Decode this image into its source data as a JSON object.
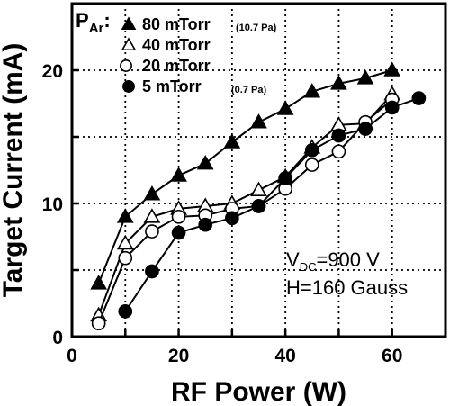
{
  "chart_data": {
    "type": "line",
    "xlabel": "RF Power (W)",
    "ylabel": "Target Current (mA)",
    "xlim": [
      0,
      70
    ],
    "ylim": [
      0,
      25
    ],
    "xticks": [
      0,
      20,
      40,
      60
    ],
    "yticks": [
      0,
      10,
      20
    ],
    "grid": true,
    "legend_title": "P",
    "legend_title_sub": "Ar",
    "legend_title_colon": ":",
    "legend_placement": "top-left",
    "series": [
      {
        "name": "80 mTorr",
        "note": "(10.7 Pa)",
        "marker": "triangle-filled",
        "x": [
          5,
          10,
          15,
          20,
          25,
          30,
          35,
          40,
          45,
          50,
          55,
          60
        ],
        "y": [
          4.0,
          9.0,
          10.7,
          12.1,
          13.0,
          14.6,
          16.1,
          17.1,
          18.4,
          19.0,
          19.4,
          20.0
        ]
      },
      {
        "name": "40 mTorr",
        "note": "",
        "marker": "triangle-open",
        "x": [
          5,
          10,
          15,
          20,
          25,
          30,
          35,
          40,
          45,
          50,
          55,
          60
        ],
        "y": [
          1.6,
          7.0,
          9.0,
          9.6,
          9.8,
          10.0,
          11.0,
          12.0,
          14.2,
          15.9,
          16.0,
          18.2
        ]
      },
      {
        "name": "20 mTorr",
        "note": "",
        "marker": "circle-open",
        "x": [
          5,
          10,
          15,
          20,
          25,
          30,
          35,
          40,
          45,
          50,
          55,
          60
        ],
        "y": [
          1.0,
          5.9,
          7.9,
          9.0,
          9.1,
          9.6,
          9.8,
          11.1,
          12.9,
          13.9,
          16.1,
          17.8
        ]
      },
      {
        "name": "5 mTorr",
        "note": "(0.7 Pa)",
        "marker": "circle-filled",
        "x": [
          10,
          15,
          20,
          25,
          30,
          35,
          40,
          45,
          50,
          55,
          60,
          65
        ],
        "y": [
          1.9,
          4.9,
          7.8,
          8.4,
          8.9,
          9.8,
          11.9,
          14.0,
          15.1,
          15.6,
          17.2,
          17.9
        ]
      }
    ],
    "annotations": {
      "vdc_main": "V",
      "vdc_sub": "DC",
      "vdc_value": "=900 V",
      "field": "H=160 Gauss"
    }
  }
}
